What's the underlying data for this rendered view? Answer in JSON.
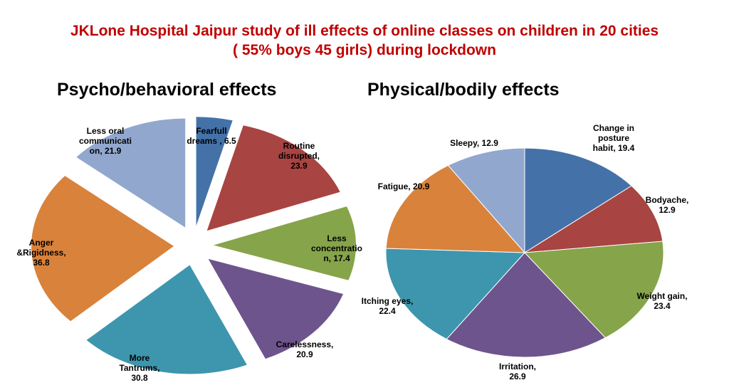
{
  "title": {
    "line1": "JKLone Hospital Jaipur study of ill effects of online classes on children in 20 cities",
    "line2": "( 55% boys 45 girls) during lockdown"
  },
  "chart_data": [
    {
      "type": "pie",
      "title": "Psycho/behavioral effects",
      "exploded": true,
      "slices": [
        {
          "label": "Fearfull dreams",
          "value": 6.5,
          "color": "#4472a8"
        },
        {
          "label": "Routine disrupted",
          "value": 23.9,
          "color": "#a84442"
        },
        {
          "label": "Less concentration",
          "value": 17.4,
          "color": "#86a44a"
        },
        {
          "label": "Carelessness",
          "value": 20.9,
          "color": "#6e548d"
        },
        {
          "label": "More Tantrums",
          "value": 30.8,
          "color": "#3d96ae"
        },
        {
          "label": "Anger &Rigidness",
          "value": 36.8,
          "color": "#d9823b"
        },
        {
          "label": "Less oral communication",
          "value": 21.9,
          "color": "#91a7ce"
        }
      ],
      "data_labels": [
        [
          "Fearfull",
          "dreams , 6.5"
        ],
        [
          "Routine",
          "disrupted,",
          "23.9"
        ],
        [
          "Less",
          "concentratio",
          "n, 17.4"
        ],
        [
          "Carelessness,",
          "20.9"
        ],
        [
          "More",
          "Tantrums,",
          "30.8"
        ],
        [
          "Anger",
          "&Rigidness,",
          "36.8"
        ],
        [
          "Less oral",
          "communicati",
          "on, 21.9"
        ]
      ]
    },
    {
      "type": "pie",
      "title": "Physical/bodily effects",
      "exploded": false,
      "slices": [
        {
          "label": "Change in posture habit",
          "value": 19.4,
          "color": "#4472a8"
        },
        {
          "label": "Bodyache",
          "value": 12.9,
          "color": "#a84442"
        },
        {
          "label": "Weight gain",
          "value": 23.4,
          "color": "#86a44a"
        },
        {
          "label": "Irritation",
          "value": 26.9,
          "color": "#6e548d"
        },
        {
          "label": "Itching eyes",
          "value": 22.4,
          "color": "#3d96ae"
        },
        {
          "label": "Fatigue",
          "value": 20.9,
          "color": "#d9823b"
        },
        {
          "label": "Sleepy",
          "value": 12.9,
          "color": "#91a7ce"
        }
      ],
      "data_labels": [
        [
          "Change in",
          "posture",
          "habit, 19.4"
        ],
        [
          "Bodyache,",
          "12.9"
        ],
        [
          "Weight gain,",
          "23.4"
        ],
        [
          "Irritation,",
          "26.9"
        ],
        [
          "Itching eyes,",
          "22.4"
        ],
        [
          "Fatigue, 20.9"
        ],
        [
          "Sleepy, 12.9"
        ]
      ]
    }
  ]
}
